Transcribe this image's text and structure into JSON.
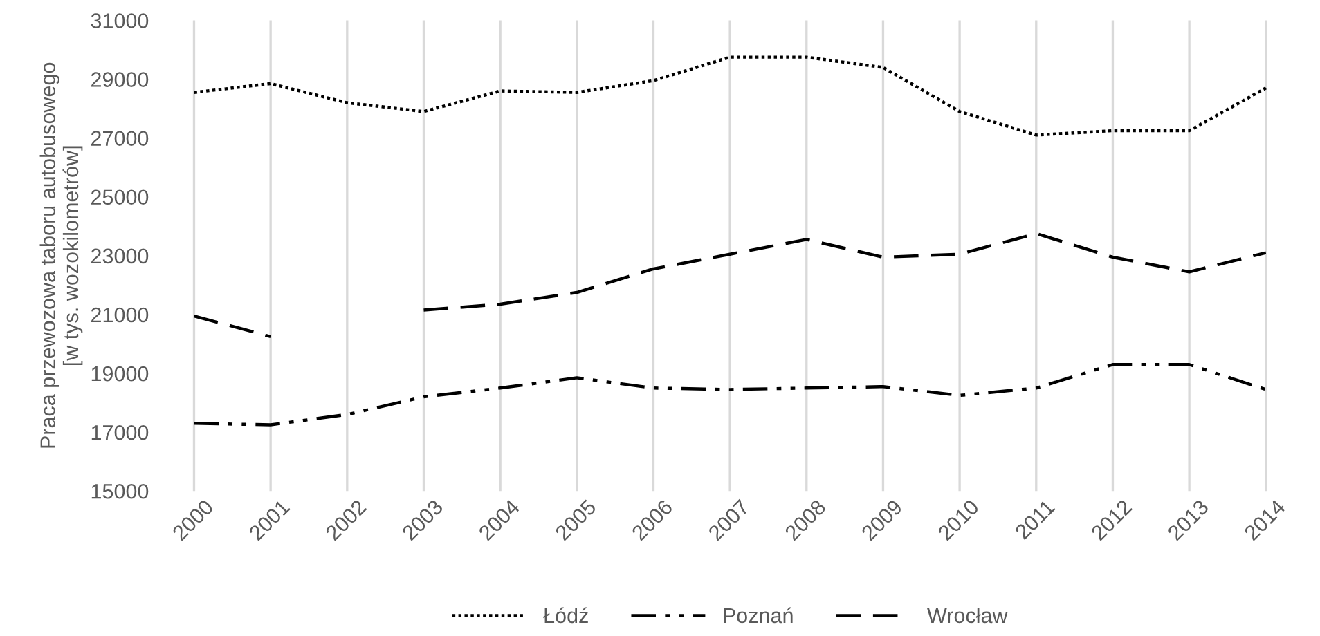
{
  "chart_data": {
    "type": "line",
    "ylabel": "Praca przewozowa taboru autobusowego\n[w tys. wozokilometrów]",
    "categories": [
      "2000",
      "2001",
      "2002",
      "2003",
      "2004",
      "2005",
      "2006",
      "2007",
      "2008",
      "2009",
      "2010",
      "2011",
      "2012",
      "2013",
      "2014"
    ],
    "series": [
      {
        "name": "Łódź",
        "color": "#000000",
        "line_style": "dotted",
        "values": [
          28550,
          28850,
          28200,
          27900,
          28600,
          28550,
          28950,
          29750,
          29750,
          29400,
          27900,
          27100,
          27250,
          27250,
          28700
        ]
      },
      {
        "name": "Poznań",
        "color": "#000000",
        "line_style": "dashdot",
        "values": [
          17300,
          17250,
          17600,
          18200,
          18500,
          18850,
          18500,
          18450,
          18500,
          18550,
          18250,
          18500,
          19300,
          19300,
          18450
        ]
      },
      {
        "name": "Wrocław",
        "color": "#000000",
        "line_style": "dashed",
        "values": [
          20950,
          20250,
          null,
          21150,
          21350,
          21750,
          22550,
          23050,
          23550,
          22950,
          23050,
          23750,
          22950,
          22450,
          23100
        ]
      }
    ],
    "ylim": [
      15000,
      31000
    ],
    "yticks": [
      15000,
      17000,
      19000,
      21000,
      23000,
      25000,
      27000,
      29000,
      31000
    ],
    "grid": "x",
    "legend": "bottom",
    "marker": "none"
  }
}
